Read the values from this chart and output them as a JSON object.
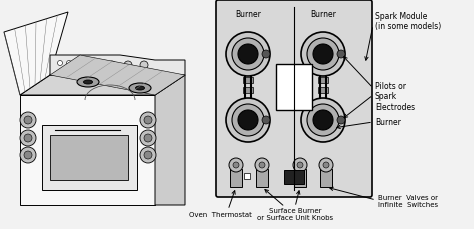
{
  "bg_color": "#f2f2f2",
  "white": "#ffffff",
  "black": "#000000",
  "stove_bg": "#f0f0f0",
  "diagram_bg": "#e0e0e0",
  "diagram_inner": "#d8d8d8",
  "burner_outer": "#d0d0d0",
  "burner_inner": "#111111",
  "pipe_color": "#555555",
  "font_size": 5.5,
  "font_size_sm": 5.0,
  "labels": {
    "spark_module": "Spark Module\n(in some models)",
    "pilots": "Pilots or\nSpark\nElectrodes",
    "burner_label": "Burner",
    "burner_top_left": "Burner",
    "burner_top_right": "Burner",
    "oven_thermostat": "Oven  Thermostat",
    "surface_burner": "Surface Burner\nor Surface Unit Knobs",
    "burner_valves": "Burner  Valves or\nInfinite  Switches"
  }
}
